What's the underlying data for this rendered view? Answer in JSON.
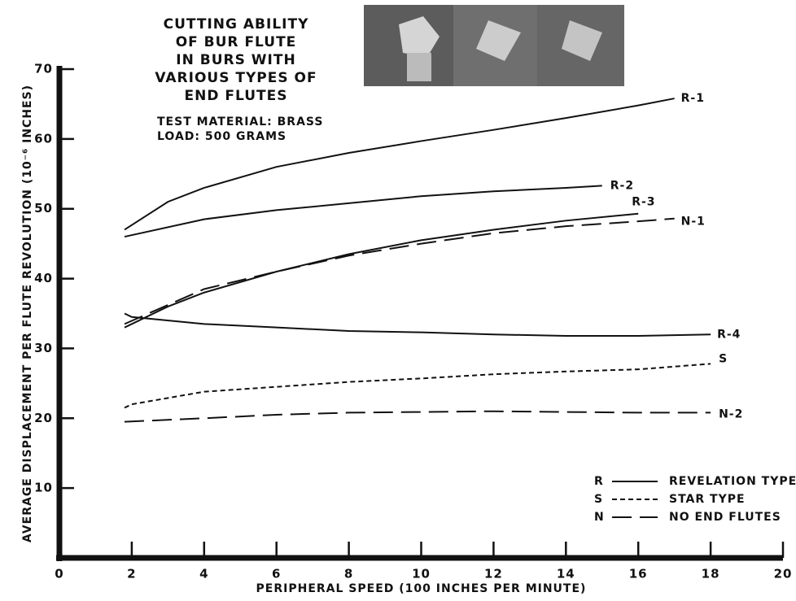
{
  "chart_data": {
    "type": "line",
    "title_lines": [
      "CUTTING ABILITY",
      "OF BUR FLUTE",
      "IN BURS WITH",
      "VARIOUS TYPES OF",
      "END FLUTES"
    ],
    "subtitle_lines": [
      "TEST MATERIAL: BRASS",
      "LOAD: 500 GRAMS"
    ],
    "x_label": "PERIPHERAL SPEED (100 INCHES PER MINUTE)",
    "y_label": "AVERAGE DISPLACEMENT PER FLUTE REVOLUTION (10⁻⁶ INCHES)",
    "xlim": [
      0,
      20
    ],
    "xticks": [
      0,
      2,
      4,
      6,
      8,
      10,
      12,
      14,
      16,
      18,
      20
    ],
    "ylim": [
      0,
      70
    ],
    "yticks": [
      10,
      20,
      30,
      40,
      50,
      60,
      70
    ],
    "color": "#111111",
    "series": [
      {
        "name": "R-1",
        "style": "solid",
        "x": [
          1.8,
          3,
          4,
          6,
          8,
          10,
          12,
          14,
          16,
          17
        ],
        "values": [
          47,
          51,
          53,
          56,
          58,
          59.7,
          61.3,
          63,
          64.8,
          65.8
        ]
      },
      {
        "name": "R-2",
        "style": "solid",
        "x": [
          1.8,
          4,
          6,
          8,
          10,
          12,
          14,
          15
        ],
        "values": [
          46,
          48.5,
          49.8,
          50.8,
          51.8,
          52.5,
          53,
          53.3
        ]
      },
      {
        "name": "R-3",
        "style": "solid",
        "x": [
          1.8,
          3,
          4,
          6,
          8,
          10,
          12,
          14,
          16
        ],
        "values": [
          33,
          36,
          38,
          41,
          43.5,
          45.5,
          47,
          48.3,
          49.3
        ]
      },
      {
        "name": "N-1",
        "style": "dashed",
        "x": [
          1.8,
          4,
          6,
          8,
          10,
          12,
          14,
          16,
          17
        ],
        "values": [
          33.5,
          38.5,
          41,
          43.3,
          45,
          46.5,
          47.5,
          48.2,
          48.6
        ]
      },
      {
        "name": "R-4",
        "style": "solid",
        "x": [
          1.8,
          2,
          4,
          6,
          8,
          10,
          12,
          14,
          16,
          18
        ],
        "values": [
          35,
          34.5,
          33.5,
          33,
          32.5,
          32.3,
          32,
          31.8,
          31.8,
          32
        ]
      },
      {
        "name": "S",
        "style": "dotted",
        "x": [
          1.8,
          2,
          4,
          6,
          8,
          10,
          12,
          14,
          16,
          18
        ],
        "values": [
          21.5,
          22,
          23.8,
          24.5,
          25.2,
          25.7,
          26.3,
          26.7,
          27,
          27.8
        ]
      },
      {
        "name": "N-2",
        "style": "dashed",
        "x": [
          1.8,
          4,
          6,
          8,
          10,
          12,
          14,
          16,
          18
        ],
        "values": [
          19.5,
          20,
          20.5,
          20.8,
          20.9,
          21,
          20.9,
          20.8,
          20.8
        ]
      }
    ],
    "legend": [
      {
        "key": "R",
        "style": "solid",
        "label": "REVELATION TYPE"
      },
      {
        "key": "S",
        "style": "dotted",
        "label": "STAR TYPE"
      },
      {
        "key": "N",
        "style": "dashed",
        "label": "NO END FLUTES"
      }
    ]
  }
}
